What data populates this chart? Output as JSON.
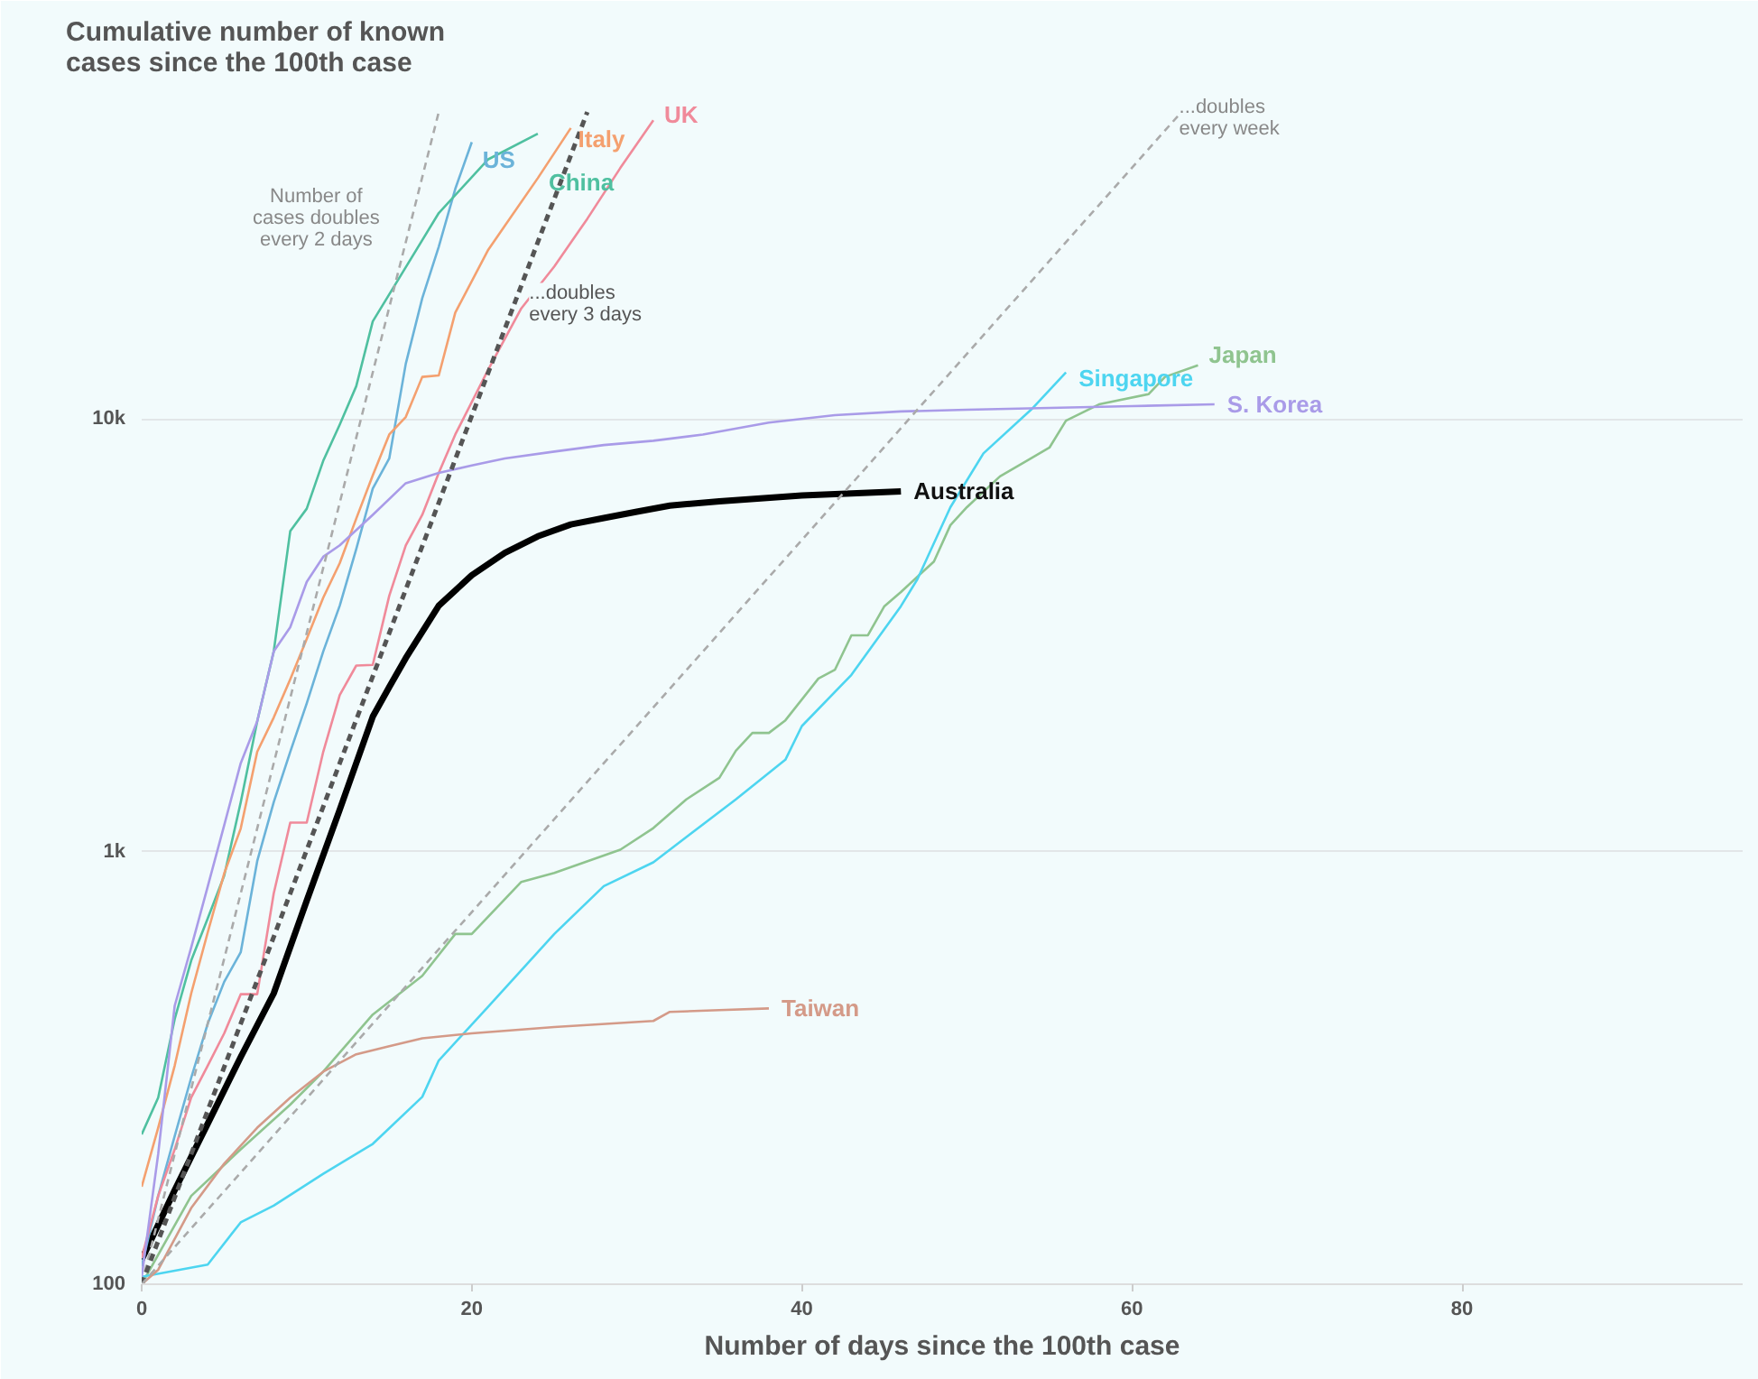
{
  "chart_data": {
    "type": "line",
    "title": "Cumulative number of known\ncases since the 100th case",
    "xlabel": "Number of days since the 100th case",
    "xlim": [
      0,
      97
    ],
    "xticks": [
      0,
      20,
      40,
      60,
      80
    ],
    "ylim": [
      100,
      60000
    ],
    "yticks": [
      100,
      {
        "value": 1000,
        "label": "1k"
      },
      {
        "value": 10000,
        "label": "10k"
      }
    ],
    "log": true,
    "grid": "y",
    "series": [
      {
        "name": "Australia",
        "color": "#000000",
        "x": [
          0,
          2,
          4,
          6,
          8,
          10,
          12,
          14,
          15,
          16,
          18,
          20,
          22,
          24,
          26,
          28,
          30,
          32,
          35,
          40,
          46
        ],
        "values": [
          114,
          165,
          235,
          335,
          470,
          770,
          1250,
          2050,
          2400,
          2800,
          3700,
          4350,
          4900,
          5350,
          5700,
          5900,
          6100,
          6300,
          6450,
          6650,
          6800
        ]
      },
      {
        "name": "US",
        "color": "#6bb3d9",
        "x": [
          0,
          1,
          2,
          3,
          4,
          5,
          6,
          7,
          8,
          9,
          10,
          11,
          12,
          13,
          14,
          15,
          16,
          17,
          18,
          19,
          20
        ],
        "values": [
          110,
          160,
          220,
          300,
          400,
          500,
          585,
          950,
          1300,
          1700,
          2200,
          2900,
          3700,
          5000,
          6900,
          8100,
          13400,
          19000,
          25000,
          34000,
          43600
        ]
      },
      {
        "name": "China",
        "color": "#4fc0a0",
        "x": [
          0,
          1,
          2,
          3,
          4,
          5,
          6,
          7,
          8,
          9,
          10,
          11,
          12,
          13,
          14,
          16,
          18,
          21,
          24
        ],
        "values": [
          222,
          270,
          410,
          560,
          700,
          880,
          1300,
          2000,
          2900,
          5500,
          6200,
          8000,
          9700,
          11900,
          16800,
          22400,
          29900,
          39800,
          45600
        ]
      },
      {
        "name": "Italy",
        "color": "#f4a06f",
        "x": [
          0,
          1,
          2,
          3,
          4,
          5,
          6,
          7,
          8,
          9,
          10,
          11,
          12,
          13,
          14,
          15,
          16,
          17,
          18,
          19,
          21,
          24,
          26
        ],
        "values": [
          168,
          230,
          320,
          470,
          650,
          890,
          1130,
          1700,
          2040,
          2500,
          3100,
          3860,
          4640,
          5880,
          7400,
          9200,
          10100,
          12500,
          12600,
          17600,
          24600,
          36000,
          47000
        ]
      },
      {
        "name": "UK",
        "color": "#f08a9a",
        "x": [
          0,
          1,
          2,
          3,
          4,
          5,
          6,
          7,
          8,
          9,
          10,
          11,
          12,
          13,
          14,
          15,
          16,
          17,
          18,
          19,
          21,
          23,
          25,
          27,
          29,
          31
        ],
        "values": [
          115,
          160,
          205,
          270,
          320,
          380,
          468,
          468,
          800,
          1166,
          1166,
          1700,
          2300,
          2690,
          2700,
          3900,
          5100,
          6000,
          7500,
          9200,
          13000,
          18000,
          22500,
          29000,
          38000,
          49000
        ]
      },
      {
        "name": "Japan",
        "color": "#8fc48f",
        "x": [
          0,
          3,
          6,
          9,
          11,
          14,
          17,
          19,
          20,
          23,
          25,
          29,
          31,
          33,
          35,
          36,
          37,
          38,
          39,
          41,
          42,
          43,
          44,
          45,
          46,
          48,
          49,
          50,
          52,
          55,
          56,
          58,
          61,
          62,
          64
        ],
        "values": [
          100,
          160,
          205,
          260,
          310,
          420,
          516,
          645,
          645,
          851,
          892,
          1010,
          1133,
          1320,
          1480,
          1710,
          1880,
          1880,
          2010,
          2510,
          2630,
          3160,
          3160,
          3690,
          3980,
          4680,
          5680,
          6250,
          7360,
          8580,
          9900,
          10800,
          11400,
          12500,
          13300
        ]
      },
      {
        "name": "Singapore",
        "color": "#4dd5f0",
        "x": [
          0,
          4,
          6,
          8,
          11,
          14,
          17,
          18,
          21,
          25,
          28,
          31,
          33,
          36,
          39,
          40,
          43,
          46,
          47,
          49,
          51,
          54,
          56
        ],
        "values": [
          104,
          111,
          139,
          152,
          180,
          211,
          271,
          329,
          438,
          645,
          832,
          944,
          1080,
          1320,
          1630,
          1950,
          2560,
          3690,
          4260,
          6250,
          8320,
          10600,
          12800
        ]
      },
      {
        "name": "S. Korea",
        "color": "#a99be8",
        "x": [
          0,
          1,
          2,
          3,
          4,
          5,
          6,
          7,
          8,
          9,
          10,
          11,
          12,
          14,
          16,
          18,
          20,
          22,
          25,
          28,
          31,
          34,
          38,
          42,
          46,
          50,
          55,
          60,
          65
        ],
        "values": [
          104,
          200,
          440,
          600,
          830,
          1150,
          1600,
          2000,
          2900,
          3300,
          4200,
          4800,
          5100,
          6000,
          7100,
          7500,
          7800,
          8100,
          8400,
          8700,
          8900,
          9200,
          9800,
          10200,
          10400,
          10500,
          10600,
          10700,
          10800
        ]
      },
      {
        "name": "Taiwan",
        "color": "#d49a88",
        "x": [
          0,
          1,
          3,
          5,
          7,
          9,
          11,
          13,
          15,
          17,
          20,
          25,
          31,
          32,
          35,
          38
        ],
        "values": [
          100,
          108,
          150,
          190,
          230,
          270,
          310,
          340,
          355,
          370,
          380,
          393,
          406,
          426,
          430,
          434
        ]
      },
      {
        "color": "#aaaaaa",
        "line_style": "dashed",
        "x": [
          0,
          18
        ],
        "values": [
          100,
          51200
        ]
      },
      {
        "color": "#555555",
        "line_style": "dashed",
        "x": [
          0,
          27
        ],
        "values": [
          100,
          51200
        ]
      },
      {
        "color": "#aaaaaa",
        "line_style": "dashed",
        "x": [
          0,
          63
        ],
        "values": [
          100,
          51200
        ]
      }
    ],
    "annotations": [
      "Number of\ncases doubles\nevery 2 days",
      "...doubles\nevery 3 days",
      "...doubles\nevery week"
    ]
  }
}
